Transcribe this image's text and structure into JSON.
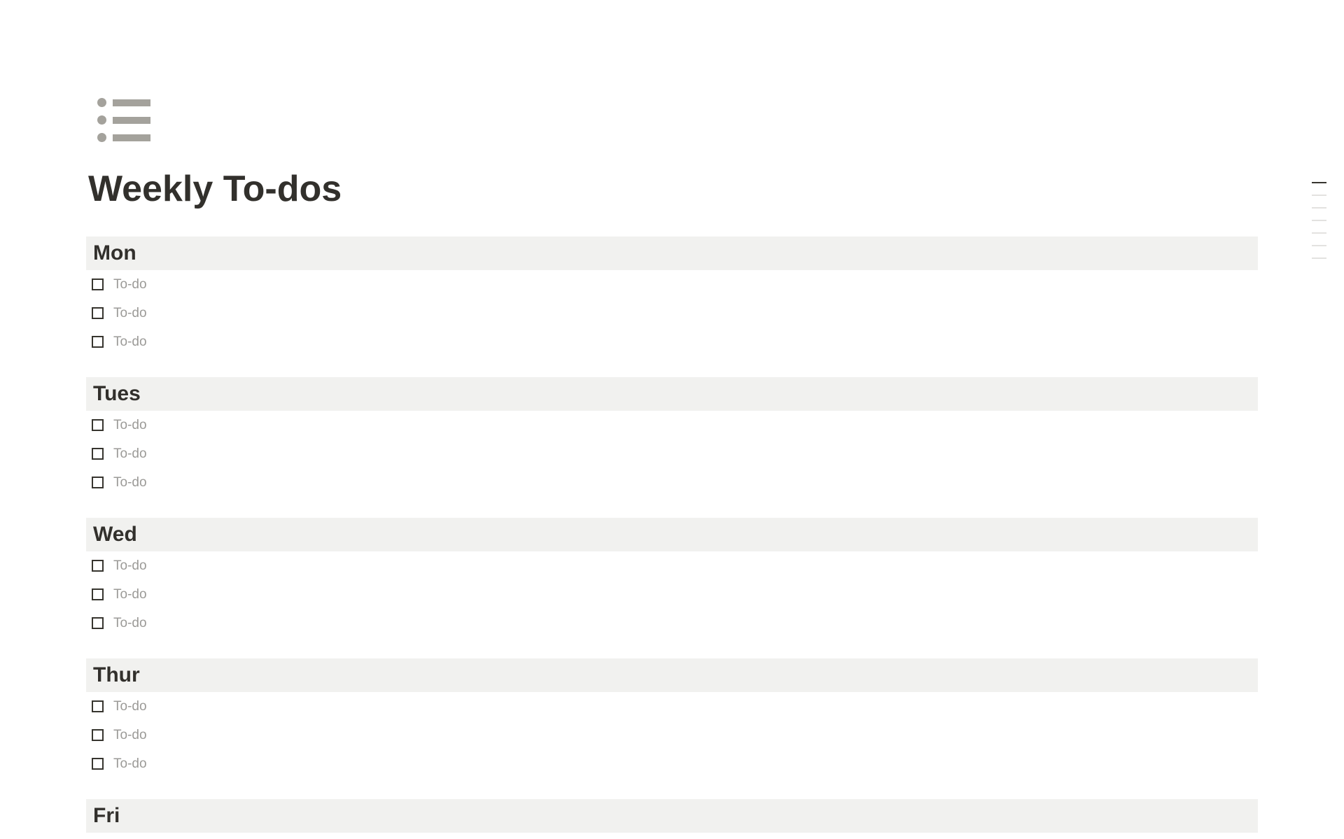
{
  "page": {
    "title": "Weekly To-dos",
    "icon": "bulleted-list-icon"
  },
  "sections": [
    {
      "heading": "Mon",
      "todos": [
        {
          "placeholder": "To-do",
          "checked": false
        },
        {
          "placeholder": "To-do",
          "checked": false
        },
        {
          "placeholder": "To-do",
          "checked": false
        }
      ]
    },
    {
      "heading": "Tues",
      "todos": [
        {
          "placeholder": "To-do",
          "checked": false
        },
        {
          "placeholder": "To-do",
          "checked": false
        },
        {
          "placeholder": "To-do",
          "checked": false
        }
      ]
    },
    {
      "heading": "Wed",
      "todos": [
        {
          "placeholder": "To-do",
          "checked": false
        },
        {
          "placeholder": "To-do",
          "checked": false
        },
        {
          "placeholder": "To-do",
          "checked": false
        }
      ]
    },
    {
      "heading": "Thur",
      "todos": [
        {
          "placeholder": "To-do",
          "checked": false
        },
        {
          "placeholder": "To-do",
          "checked": false
        },
        {
          "placeholder": "To-do",
          "checked": false
        }
      ]
    },
    {
      "heading": "Fri",
      "todos": []
    }
  ],
  "outline": {
    "items": 7,
    "active_index": 0
  },
  "colors": {
    "heading_bg": "#f1f1ef",
    "icon": "#a4a29c",
    "text": "#37352f",
    "placeholder": "#9b9a97"
  }
}
